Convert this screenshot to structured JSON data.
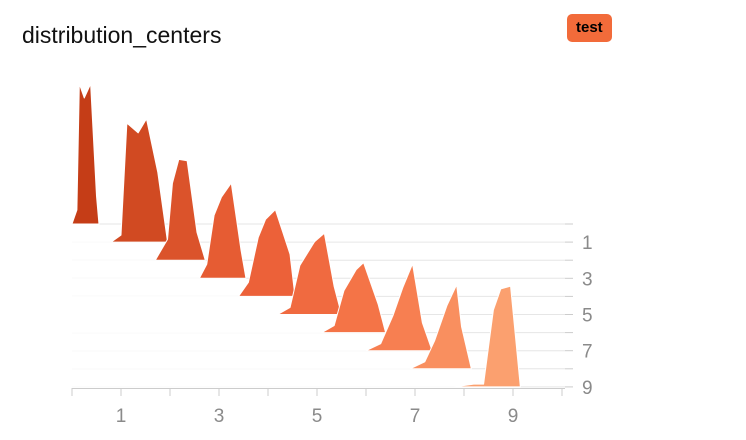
{
  "title": "distribution_centers",
  "badge": {
    "label": "test",
    "color": "#f26b3a"
  },
  "chart_data": {
    "type": "area",
    "layout": "ridgeline",
    "x_ticks": [
      "1",
      "3",
      "5",
      "7",
      "9"
    ],
    "y_ticks": [
      "1",
      "3",
      "5",
      "7",
      "9"
    ],
    "grid": true,
    "colors": [
      "#c53d17",
      "#d14a22",
      "#db532b",
      "#e65c33",
      "#ec6139",
      "#f06a40",
      "#f47447",
      "#f77f51",
      "#f98f5f",
      "#fba06f"
    ],
    "series": [
      {
        "row": 0,
        "x": [
          0,
          0.1,
          0.15,
          0.25,
          0.38,
          0.5,
          0.55
        ],
        "y": [
          0,
          0.1,
          1.0,
          0.9,
          1.0,
          0.2,
          0
        ]
      },
      {
        "row": 1,
        "x": [
          0.8,
          1.0,
          1.12,
          1.35,
          1.52,
          1.75,
          1.95
        ],
        "y": [
          0,
          0.05,
          0.85,
          0.78,
          0.88,
          0.5,
          0
        ]
      },
      {
        "row": 2,
        "x": [
          1.7,
          1.95,
          2.05,
          2.18,
          2.35,
          2.55,
          2.72
        ],
        "y": [
          0,
          0.15,
          0.55,
          0.72,
          0.71,
          0.2,
          0
        ]
      },
      {
        "row": 3,
        "x": [
          2.6,
          2.75,
          2.9,
          3.05,
          3.25,
          3.45,
          3.55
        ],
        "y": [
          0,
          0.1,
          0.45,
          0.58,
          0.68,
          0.2,
          0
        ]
      },
      {
        "row": 4,
        "x": [
          3.4,
          3.6,
          3.8,
          3.95,
          4.15,
          4.45,
          4.55
        ],
        "y": [
          0,
          0.1,
          0.42,
          0.55,
          0.62,
          0.3,
          0
        ]
      },
      {
        "row": 5,
        "x": [
          4.2,
          4.45,
          4.65,
          4.95,
          5.15,
          5.35,
          5.5
        ],
        "y": [
          0,
          0.05,
          0.35,
          0.52,
          0.58,
          0.2,
          0
        ]
      },
      {
        "row": 6,
        "x": [
          5.1,
          5.35,
          5.55,
          5.8,
          5.95,
          6.25,
          6.4
        ],
        "y": [
          0,
          0.05,
          0.3,
          0.45,
          0.5,
          0.2,
          0
        ]
      },
      {
        "row": 7,
        "x": [
          6.0,
          6.3,
          6.55,
          6.75,
          6.95,
          7.15,
          7.35
        ],
        "y": [
          0,
          0.05,
          0.25,
          0.45,
          0.62,
          0.2,
          0
        ]
      },
      {
        "row": 8,
        "x": [
          6.9,
          7.2,
          7.4,
          7.65,
          7.85,
          7.95,
          8.15
        ],
        "y": [
          0,
          0.05,
          0.2,
          0.45,
          0.6,
          0.3,
          0
        ]
      },
      {
        "row": 9,
        "x": [
          7.8,
          8.2,
          8.4,
          8.6,
          8.75,
          8.95,
          9.15
        ],
        "y": [
          0,
          0.02,
          0.02,
          0.55,
          0.7,
          0.72,
          0
        ]
      }
    ]
  }
}
